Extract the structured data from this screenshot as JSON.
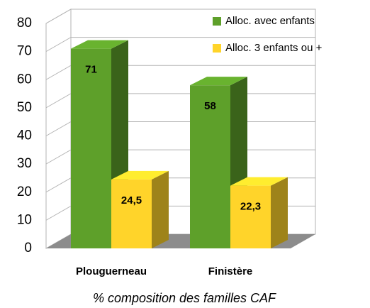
{
  "chart_data": {
    "type": "bar3d",
    "title": "% composition des familles CAF",
    "categories": [
      "Plouguerneau",
      "Finistère"
    ],
    "series": [
      {
        "name": "Alloc. avec enfants",
        "color": "#5ea02a",
        "values": [
          71,
          58
        ],
        "value_labels": [
          "71",
          "58"
        ]
      },
      {
        "name": "Alloc. 3 enfants ou +",
        "color": "#ffd42a",
        "values": [
          24.5,
          22.3
        ],
        "value_labels": [
          "24,5",
          "22,3"
        ]
      }
    ],
    "ylim": [
      0,
      80
    ],
    "yticks": [
      0,
      10,
      20,
      30,
      40,
      50,
      60,
      70,
      80
    ],
    "grid": true,
    "legend": "top-right"
  }
}
